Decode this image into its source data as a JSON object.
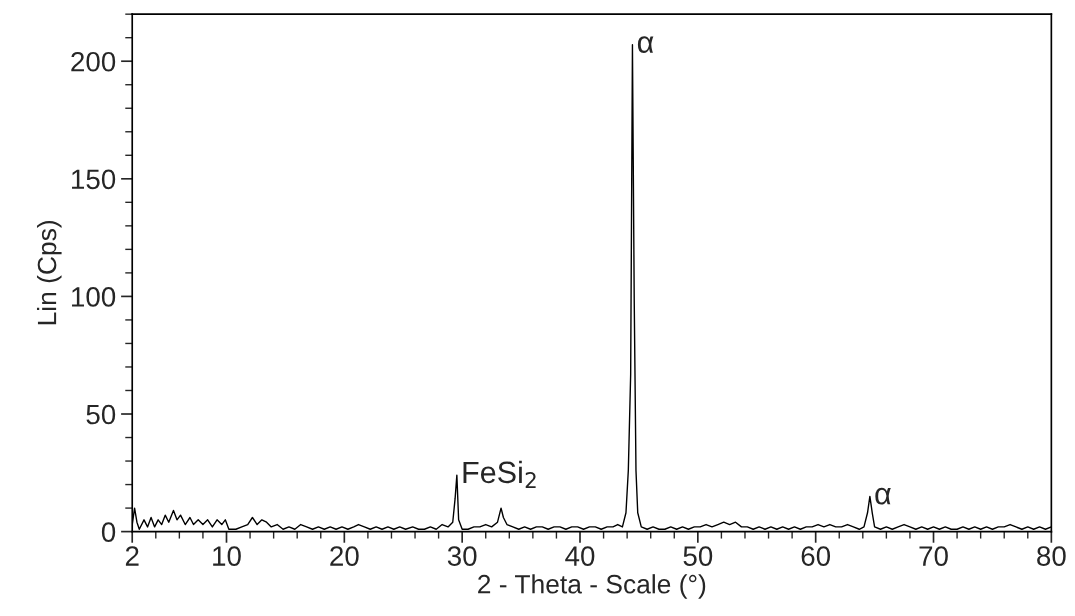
{
  "chart_data": {
    "type": "line",
    "xlabel": "2 - Theta - Scale (°)",
    "ylabel": "Lin (Cps)",
    "series": [
      {
        "color": "#000000",
        "x": [
          2.0,
          2.2,
          2.4,
          2.6,
          3.0,
          3.3,
          3.6,
          3.9,
          4.2,
          4.5,
          4.8,
          5.1,
          5.5,
          5.8,
          6.1,
          6.5,
          6.9,
          7.2,
          7.6,
          8.0,
          8.4,
          8.8,
          9.2,
          9.6,
          9.9,
          10.2,
          10.8,
          11.3,
          11.8,
          12.2,
          12.6,
          13.0,
          13.4,
          13.8,
          14.3,
          14.8,
          15.3,
          15.8,
          16.3,
          16.8,
          17.3,
          17.8,
          18.3,
          18.8,
          19.3,
          19.8,
          20.3,
          20.8,
          21.2,
          21.7,
          22.2,
          22.7,
          23.2,
          23.7,
          24.2,
          24.7,
          25.2,
          25.8,
          26.3,
          26.8,
          27.3,
          27.8,
          28.3,
          28.8,
          29.2,
          29.4,
          29.55,
          29.7,
          30.0,
          30.5,
          31.0,
          31.5,
          32.0,
          32.5,
          33.0,
          33.3,
          33.5,
          33.8,
          34.3,
          34.8,
          35.3,
          35.8,
          36.3,
          36.8,
          37.3,
          37.8,
          38.3,
          38.8,
          39.3,
          39.8,
          40.3,
          40.8,
          41.3,
          41.8,
          42.3,
          42.8,
          43.2,
          43.6,
          43.9,
          44.1,
          44.3,
          44.45,
          44.6,
          44.75,
          44.9,
          45.2,
          45.7,
          46.2,
          46.7,
          47.2,
          47.7,
          48.2,
          48.7,
          49.2,
          49.7,
          50.2,
          50.7,
          51.2,
          51.7,
          52.2,
          52.7,
          53.2,
          53.7,
          54.2,
          54.7,
          55.2,
          55.7,
          56.2,
          56.7,
          57.2,
          57.7,
          58.2,
          58.7,
          59.2,
          59.7,
          60.2,
          60.7,
          61.2,
          61.7,
          62.2,
          62.7,
          63.2,
          63.7,
          64.1,
          64.4,
          64.6,
          64.8,
          65.0,
          65.5,
          66.0,
          66.5,
          67.0,
          67.5,
          68.0,
          68.5,
          69.0,
          69.5,
          70.0,
          70.5,
          71.0,
          71.5,
          72.0,
          72.5,
          73.0,
          73.5,
          74.0,
          74.5,
          75.0,
          75.5,
          76.0,
          76.5,
          77.0,
          77.5,
          78.0,
          78.5,
          79.0,
          79.5,
          80.0
        ],
        "values": [
          3,
          10,
          4,
          1,
          5,
          2,
          6,
          2,
          5,
          3,
          7,
          4,
          9,
          5,
          7,
          3,
          6,
          3,
          5,
          3,
          5,
          2,
          5,
          3,
          5,
          1,
          1,
          2,
          3,
          6,
          3,
          5,
          4,
          2,
          3,
          1,
          2,
          1,
          3,
          2,
          1,
          2,
          1,
          2,
          1,
          2,
          1,
          2,
          3,
          2,
          1,
          2,
          1,
          2,
          1,
          2,
          1,
          2,
          1,
          1,
          2,
          1,
          3,
          2,
          4,
          14,
          24,
          5,
          1,
          1,
          2,
          2,
          3,
          2,
          4,
          10,
          6,
          3,
          2,
          1,
          2,
          1,
          2,
          2,
          1,
          2,
          2,
          1,
          2,
          2,
          1,
          2,
          2,
          1,
          2,
          2,
          3,
          2,
          8,
          26,
          67,
          207,
          99,
          26,
          8,
          2,
          1,
          2,
          1,
          1,
          2,
          1,
          2,
          1,
          2,
          2,
          3,
          2,
          3,
          4,
          3,
          4,
          2,
          2,
          1,
          2,
          1,
          2,
          1,
          2,
          1,
          2,
          1,
          2,
          2,
          3,
          2,
          3,
          2,
          2,
          3,
          2,
          1,
          2,
          8,
          15,
          8,
          2,
          1,
          2,
          1,
          2,
          3,
          2,
          1,
          2,
          1,
          2,
          1,
          2,
          1,
          1,
          2,
          1,
          2,
          1,
          2,
          1,
          2,
          2,
          3,
          2,
          1,
          2,
          1,
          2,
          1,
          2
        ]
      }
    ],
    "xlim": [
      2,
      80
    ],
    "xticks": [
      2,
      {
        "value": 4,
        "label": null
      },
      {
        "value": 6,
        "label": null
      },
      {
        "value": 8,
        "label": null
      },
      10,
      {
        "value": 12,
        "label": null
      },
      {
        "value": 14,
        "label": null
      },
      {
        "value": 16,
        "label": null
      },
      {
        "value": 18,
        "label": null
      },
      20,
      {
        "value": 22,
        "label": null
      },
      {
        "value": 24,
        "label": null
      },
      {
        "value": 26,
        "label": null
      },
      {
        "value": 28,
        "label": null
      },
      30,
      {
        "value": 32,
        "label": null
      },
      {
        "value": 34,
        "label": null
      },
      {
        "value": 36,
        "label": null
      },
      {
        "value": 38,
        "label": null
      },
      40,
      {
        "value": 42,
        "label": null
      },
      {
        "value": 44,
        "label": null
      },
      {
        "value": 46,
        "label": null
      },
      {
        "value": 48,
        "label": null
      },
      50,
      {
        "value": 52,
        "label": null
      },
      {
        "value": 54,
        "label": null
      },
      {
        "value": 56,
        "label": null
      },
      {
        "value": 58,
        "label": null
      },
      60,
      {
        "value": 62,
        "label": null
      },
      {
        "value": 64,
        "label": null
      },
      {
        "value": 66,
        "label": null
      },
      {
        "value": 68,
        "label": null
      },
      70,
      {
        "value": 72,
        "label": null
      },
      {
        "value": 74,
        "label": null
      },
      {
        "value": 76,
        "label": null
      },
      {
        "value": 78,
        "label": null
      },
      80
    ],
    "ylim": [
      0,
      220
    ],
    "yticks": [
      0,
      {
        "value": 10,
        "label": null
      },
      {
        "value": 20,
        "label": null
      },
      {
        "value": 30,
        "label": null
      },
      {
        "value": 40,
        "label": null
      },
      50,
      {
        "value": 60,
        "label": null
      },
      {
        "value": 70,
        "label": null
      },
      {
        "value": 80,
        "label": null
      },
      {
        "value": 90,
        "label": null
      },
      100,
      {
        "value": 110,
        "label": null
      },
      {
        "value": 120,
        "label": null
      },
      {
        "value": 130,
        "label": null
      },
      {
        "value": 140,
        "label": null
      },
      150,
      {
        "value": 160,
        "label": null
      },
      {
        "value": 170,
        "label": null
      },
      {
        "value": 180,
        "label": null
      },
      {
        "value": 190,
        "label": null
      },
      200,
      {
        "value": 210,
        "label": null
      },
      {
        "value": 220,
        "label": null
      }
    ],
    "annotations": [
      {
        "text": "α",
        "x": 44.45,
        "y": 207
      },
      {
        "text": "FeSi$_{2}$",
        "x": 29.55,
        "y": 24
      },
      {
        "text": "α",
        "x": 64.6,
        "y": 15
      }
    ],
    "grid": false,
    "legend": false,
    "marker": "none",
    "line_style": "solid"
  }
}
